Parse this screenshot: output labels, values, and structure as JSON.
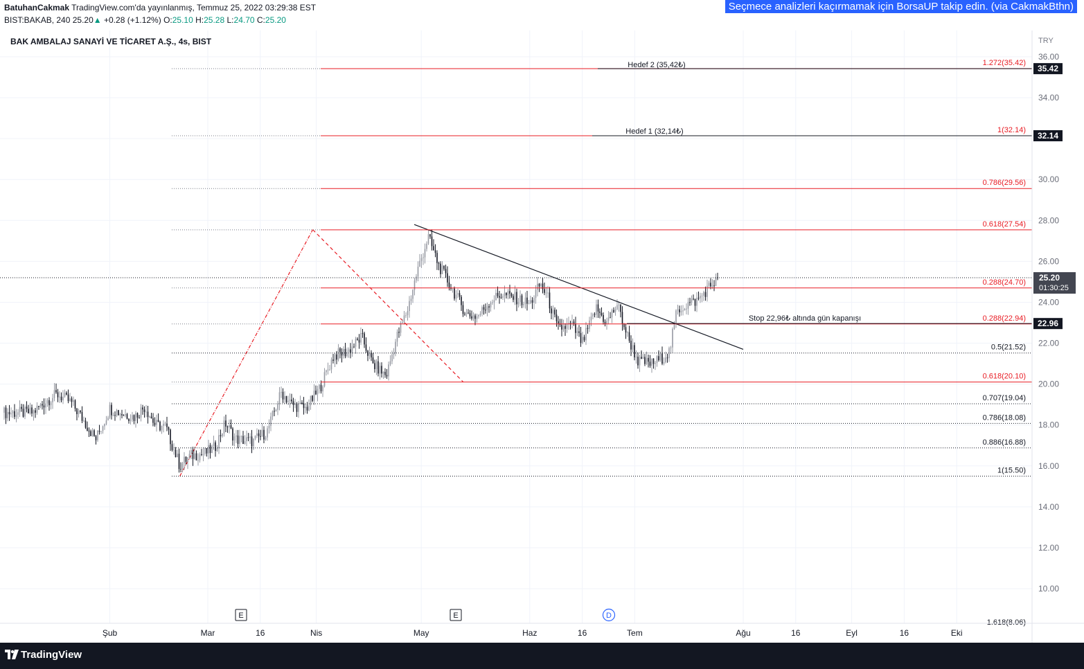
{
  "header": {
    "author": "BatuhanCakmak",
    "published": "TradingView.com'da yayınlanmış, Temmuz 25, 2022 03:29:38 EST",
    "symbol_line": "BIST:BAKAB, 240",
    "last_price": "25.20",
    "change": "+0.28 (+1.12%)",
    "o_label": "O:",
    "o_value": "25.10",
    "h_label": "H:",
    "h_value": "25.28",
    "l_label": "L:",
    "l_value": "24.70",
    "c_label": "C:",
    "c_value": "25.20",
    "promo": "Seçmece analizleri kaçırmamak için BorsaUP takip edin. (via CakmakBthn)"
  },
  "panel_title": "BAK AMBALAJ SANAYİ VE TİCARET A.Ş., 4s, BIST",
  "footer": {
    "brand": "TradingView"
  },
  "colors": {
    "fib": "#e81b23",
    "trend": "#131722",
    "up": "#9598a1",
    "down": "#131722",
    "promo": "#2962ff",
    "footer": "#131722"
  },
  "chart_data": {
    "type": "candlestick",
    "currency": "TRY",
    "ylim": [
      8.0,
      36.5
    ],
    "y_ticks": [
      "36.00",
      "34.00",
      "30.00",
      "28.00",
      "26.00",
      "24.00",
      "22.00",
      "20.00",
      "18.00",
      "16.00",
      "14.00",
      "12.00",
      "10.00"
    ],
    "x_ticks": [
      "Şub",
      "Mar",
      "16",
      "Nis",
      "May",
      "Haz",
      "16",
      "Tem",
      "Ağu",
      "16",
      "Eyl",
      "16",
      "Eki"
    ],
    "price_badges": [
      {
        "text": "35.42",
        "value": 35.42
      },
      {
        "text": "32.14",
        "value": 32.14
      },
      {
        "text": "22.96",
        "value": 22.96
      }
    ],
    "last_price_badge": {
      "price": "25.20",
      "countdown": "01:30:25",
      "value": 25.2
    },
    "fib_levels": [
      {
        "label": "1.272(35.42)",
        "value": 35.42,
        "style": "solid"
      },
      {
        "label": "1(32.14)",
        "value": 32.14,
        "style": "solid"
      },
      {
        "label": "0.786(29.56)",
        "value": 29.56,
        "style": "solid"
      },
      {
        "label": "0.618(27.54)",
        "value": 27.54,
        "style": "solid"
      },
      {
        "label": "0.288(24.70)",
        "value": 24.7,
        "style": "solid"
      },
      {
        "label": "0.288(22.94)",
        "value": 22.94,
        "style": "solid"
      },
      {
        "label": "0.5(21.52)",
        "value": 21.52,
        "style": "dotted"
      },
      {
        "label": "0.618(20.10)",
        "value": 20.1,
        "style": "solid"
      },
      {
        "label": "0.707(19.04)",
        "value": 19.04,
        "style": "dotted"
      },
      {
        "label": "0.786(18.08)",
        "value": 18.08,
        "style": "dotted"
      },
      {
        "label": "0.886(16.88)",
        "value": 16.88,
        "style": "dotted"
      },
      {
        "label": "1(15.50)",
        "value": 15.5,
        "style": "dotted"
      },
      {
        "label": "1.618(8.06)",
        "value": 8.06,
        "style": "dotted"
      }
    ],
    "annotations": [
      {
        "text": "Hedef 2 (35,42₺)",
        "value": 35.42
      },
      {
        "text": "Hedef 1 (32,14₺)",
        "value": 32.14
      },
      {
        "text": "Stop 22,96₺ altında gün kapanışı",
        "value": 22.96
      }
    ],
    "event_markers": [
      "E",
      "E",
      "D"
    ],
    "trendline": {
      "from": {
        "date": "2022-04-29",
        "price": 27.8
      },
      "to": {
        "date": "2022-08-01",
        "price": 21.7
      }
    },
    "fib_extension_swing": [
      {
        "date": "2022-02-21",
        "price": 15.5
      },
      {
        "date": "2022-03-31",
        "price": 27.55
      },
      {
        "date": "2022-05-13",
        "price": 20.1
      }
    ],
    "price_path": [
      {
        "date": "2022-01-10",
        "price": 18.6
      },
      {
        "date": "2022-01-14",
        "price": 19.2
      },
      {
        "date": "2022-01-17",
        "price": 19.5
      },
      {
        "date": "2022-01-21",
        "price": 19.1
      },
      {
        "date": "2022-01-25",
        "price": 18.1
      },
      {
        "date": "2022-01-28",
        "price": 17.3
      },
      {
        "date": "2022-02-01",
        "price": 18.8
      },
      {
        "date": "2022-02-04",
        "price": 18.6
      },
      {
        "date": "2022-02-08",
        "price": 18.4
      },
      {
        "date": "2022-02-11",
        "price": 18.9
      },
      {
        "date": "2022-02-14",
        "price": 18.0
      },
      {
        "date": "2022-02-17",
        "price": 17.9
      },
      {
        "date": "2022-02-21",
        "price": 16.0
      },
      {
        "date": "2022-02-24",
        "price": 16.5
      },
      {
        "date": "2022-02-28",
        "price": 16.6
      },
      {
        "date": "2022-03-03",
        "price": 16.9
      },
      {
        "date": "2022-03-06",
        "price": 18.1
      },
      {
        "date": "2022-03-09",
        "price": 17.3
      },
      {
        "date": "2022-03-14",
        "price": 17.2
      },
      {
        "date": "2022-03-18",
        "price": 17.7
      },
      {
        "date": "2022-03-22",
        "price": 19.6
      },
      {
        "date": "2022-03-25",
        "price": 19.0
      },
      {
        "date": "2022-03-29",
        "price": 18.8
      },
      {
        "date": "2022-04-02",
        "price": 19.8
      },
      {
        "date": "2022-04-06",
        "price": 21.4
      },
      {
        "date": "2022-04-10",
        "price": 21.6
      },
      {
        "date": "2022-04-14",
        "price": 22.3
      },
      {
        "date": "2022-04-17",
        "price": 21.0
      },
      {
        "date": "2022-04-21",
        "price": 20.4
      },
      {
        "date": "2022-04-24",
        "price": 22.3
      },
      {
        "date": "2022-04-27",
        "price": 23.6
      },
      {
        "date": "2022-04-30",
        "price": 25.6
      },
      {
        "date": "2022-05-03",
        "price": 27.2
      },
      {
        "date": "2022-05-06",
        "price": 25.8
      },
      {
        "date": "2022-05-10",
        "price": 24.6
      },
      {
        "date": "2022-05-14",
        "price": 23.4
      },
      {
        "date": "2022-05-17",
        "price": 23.3
      },
      {
        "date": "2022-05-21",
        "price": 24.1
      },
      {
        "date": "2022-05-24",
        "price": 24.4
      },
      {
        "date": "2022-05-28",
        "price": 24.2
      },
      {
        "date": "2022-06-01",
        "price": 23.9
      },
      {
        "date": "2022-06-04",
        "price": 24.9
      },
      {
        "date": "2022-06-06",
        "price": 24.3
      },
      {
        "date": "2022-06-09",
        "price": 22.7
      },
      {
        "date": "2022-06-13",
        "price": 22.9
      },
      {
        "date": "2022-06-16",
        "price": 22.0
      },
      {
        "date": "2022-06-20",
        "price": 23.7
      },
      {
        "date": "2022-06-23",
        "price": 23.0
      },
      {
        "date": "2022-06-26",
        "price": 23.9
      },
      {
        "date": "2022-06-29",
        "price": 22.3
      },
      {
        "date": "2022-07-02",
        "price": 21.1
      },
      {
        "date": "2022-07-06",
        "price": 21.0
      },
      {
        "date": "2022-07-09",
        "price": 21.3
      },
      {
        "date": "2022-07-11",
        "price": 21.6
      },
      {
        "date": "2022-07-13",
        "price": 23.6
      },
      {
        "date": "2022-07-16",
        "price": 23.9
      },
      {
        "date": "2022-07-19",
        "price": 24.1
      },
      {
        "date": "2022-07-22",
        "price": 24.7
      },
      {
        "date": "2022-07-25",
        "price": 25.2
      }
    ]
  }
}
